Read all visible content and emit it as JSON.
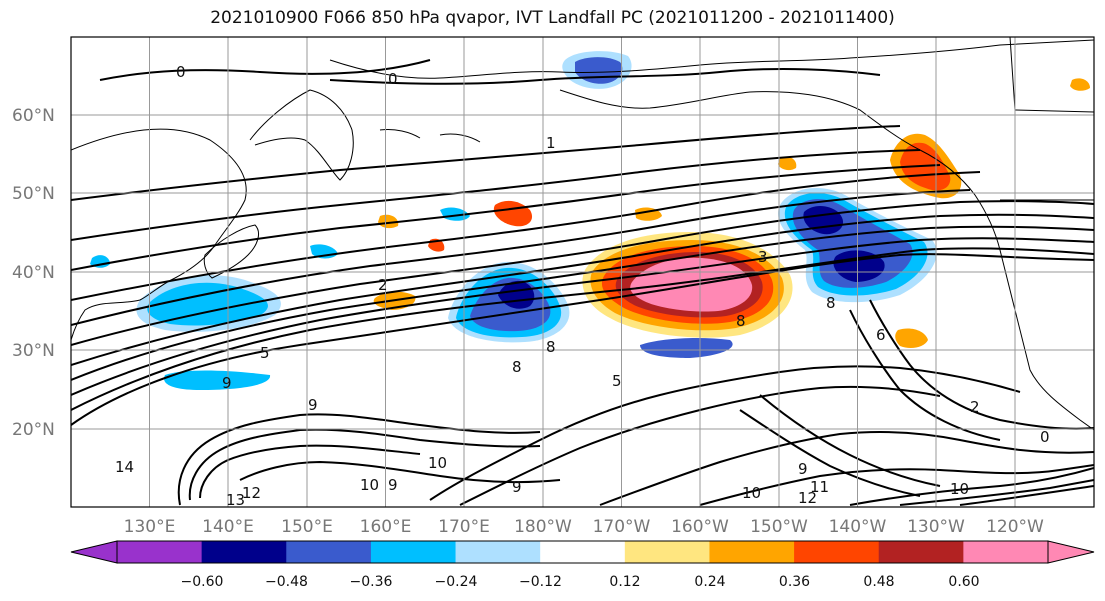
{
  "title": "2021010900 F066 850 hPa qvapor, IVT Landfall PC (2021011200 - 2021011400)",
  "lon_labels": [
    "130°E",
    "140°E",
    "150°E",
    "160°E",
    "170°E",
    "180°W",
    "170°W",
    "160°W",
    "150°W",
    "140°W",
    "130°W",
    "120°W"
  ],
  "lat_labels": [
    "60°N",
    "50°N",
    "40°N",
    "30°N",
    "20°N"
  ],
  "colorbar": {
    "colors": [
      "#9932cc",
      "#00008b",
      "#3a5bcd",
      "#00bfff",
      "#aee0ff",
      "#ffffff",
      "#ffe680",
      "#ffa500",
      "#ff4500",
      "#b22222",
      "#ff88b4"
    ],
    "tick_labels": [
      "−0.60",
      "−0.48",
      "−0.36",
      "−0.24",
      "−0.12",
      "0.12",
      "0.24",
      "0.36",
      "0.48",
      "0.60"
    ]
  },
  "contour_labels": [
    "0",
    "0",
    "1",
    "2",
    "5",
    "9",
    "9",
    "8",
    "8",
    "5",
    "3",
    "8",
    "8",
    "6",
    "2",
    "0",
    "10",
    "9",
    "10",
    "12",
    "14",
    "10",
    "9",
    "9",
    "11",
    "12",
    "13",
    "10"
  ],
  "colors": {
    "blobs_positive": [
      "#ffe680",
      "#ffa500",
      "#ff4500",
      "#b22222",
      "#ff88b4"
    ],
    "blobs_negative": [
      "#aee0ff",
      "#00bfff",
      "#3a5bcd",
      "#00008b",
      "#9932cc"
    ],
    "grid": "#999999",
    "contour": "#000000"
  }
}
